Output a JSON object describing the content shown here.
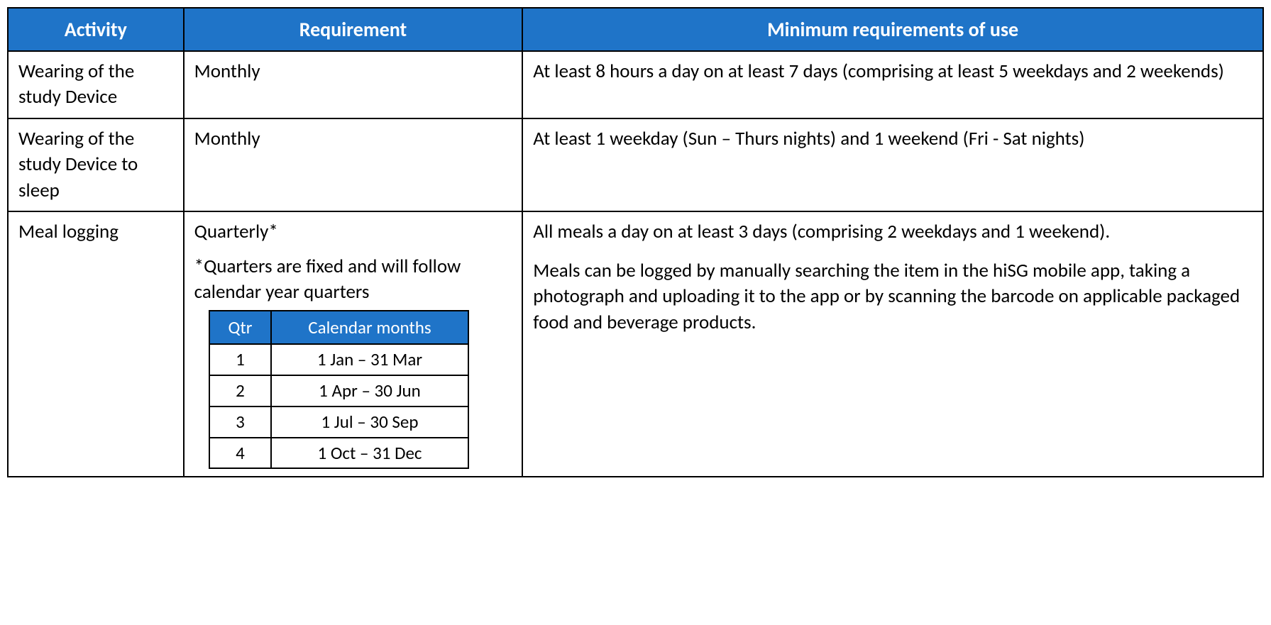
{
  "table": {
    "headers": {
      "activity": "Activity",
      "requirement": "Requirement",
      "min": "Minimum requirements of use"
    },
    "rows": [
      {
        "activity": "Wearing of the study Device",
        "requirement_text": "Monthly",
        "min": "At least 8 hours a day on at least 7 days (comprising at least 5 weekdays and 2 weekends)"
      },
      {
        "activity": "Wearing of the study Device to sleep",
        "requirement_text": "Monthly",
        "min": "At least 1 weekday (Sun – Thurs nights) and 1 weekend (Fri - Sat nights)"
      },
      {
        "activity": "Meal logging",
        "requirement_text": "Quarterly*",
        "requirement_note": "*Quarters are fixed and will follow calendar year quarters",
        "inner_table": {
          "headers": {
            "qtr": "Qtr",
            "months": "Calendar months"
          },
          "rows": [
            {
              "qtr": "1",
              "months": "1 Jan – 31 Mar"
            },
            {
              "qtr": "2",
              "months": "1 Apr – 30 Jun"
            },
            {
              "qtr": "3",
              "months": "1 Jul – 30 Sep"
            },
            {
              "qtr": "4",
              "months": "1 Oct – 31 Dec"
            }
          ]
        },
        "min_p1": "All meals a day on at least 3 days (comprising 2 weekdays and 1 weekend).",
        "min_p2": "Meals can be logged by manually searching the item in the hiSG mobile app, taking a photograph and uploading it to the app or by scanning the barcode on applicable packaged food and beverage products."
      }
    ]
  },
  "colors": {
    "header_bg": "#1f74c8",
    "header_fg": "#ffffff",
    "border": "#000000",
    "body_bg": "#ffffff",
    "text": "#000000"
  }
}
